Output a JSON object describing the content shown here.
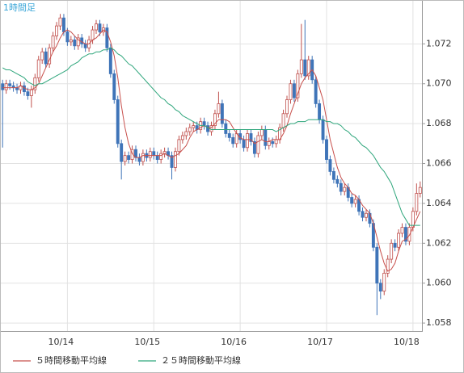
{
  "chart_data": {
    "type": "candlestick",
    "title": "1時間足",
    "categories": [
      null,
      null,
      null,
      null,
      null,
      null,
      null,
      null,
      null,
      null,
      null,
      null,
      null,
      null,
      null,
      null,
      null,
      null,
      "10/14",
      null,
      null,
      null,
      null,
      null,
      null,
      null,
      null,
      null,
      null,
      null,
      null,
      null,
      null,
      null,
      null,
      null,
      null,
      null,
      null,
      null,
      null,
      null,
      "10/15",
      null,
      null,
      null,
      null,
      null,
      null,
      null,
      null,
      null,
      null,
      null,
      null,
      null,
      null,
      null,
      null,
      null,
      null,
      null,
      null,
      null,
      null,
      null,
      "10/16",
      null,
      null,
      null,
      null,
      null,
      null,
      null,
      null,
      null,
      null,
      null,
      null,
      null,
      null,
      null,
      null,
      null,
      null,
      null,
      null,
      null,
      null,
      null,
      "10/17",
      null,
      null,
      null,
      null,
      null,
      null,
      null,
      null,
      null,
      null,
      null,
      null,
      null,
      null,
      null,
      null,
      null,
      null,
      null,
      null,
      null,
      null,
      null,
      "10/18",
      null,
      null
    ],
    "open": [
      1.07,
      1.0697,
      1.07,
      1.0699,
      1.0698,
      1.0697,
      1.0699,
      1.0696,
      1.0694,
      1.0697,
      1.0703,
      1.0712,
      1.0716,
      1.071,
      1.0718,
      1.0724,
      1.0729,
      1.0733,
      1.0726,
      1.0721,
      1.0722,
      1.0719,
      1.0723,
      1.072,
      1.0718,
      1.0722,
      1.0727,
      1.073,
      1.0726,
      1.0728,
      1.0718,
      1.0705,
      1.0692,
      1.067,
      1.0661,
      1.0664,
      1.0662,
      1.0667,
      1.0663,
      1.0661,
      1.0665,
      1.0663,
      1.0666,
      1.0664,
      1.0662,
      1.0665,
      1.0666,
      1.0664,
      1.0658,
      1.0666,
      1.0672,
      1.0674,
      1.0676,
      1.0678,
      1.0679,
      1.0677,
      1.0681,
      1.0679,
      1.0676,
      1.0679,
      1.0685,
      1.069,
      1.068,
      1.0675,
      1.0673,
      1.067,
      1.0675,
      1.0672,
      1.0668,
      1.0675,
      1.0671,
      1.0665,
      1.0674,
      1.0677,
      1.0669,
      1.0671,
      1.067,
      1.0672,
      1.0678,
      1.0685,
      1.0692,
      1.07,
      1.0693,
      1.0705,
      1.0712,
      1.0704,
      1.0712,
      1.0702,
      1.069,
      1.0682,
      1.0672,
      1.0662,
      1.0656,
      1.0652,
      1.065,
      1.0646,
      1.0648,
      1.0643,
      1.064,
      1.0642,
      1.0636,
      1.0633,
      1.0635,
      1.063,
      1.0618,
      1.06,
      1.0596,
      1.0605,
      1.0612,
      1.062,
      1.0618,
      1.0625,
      1.0628,
      1.0621,
      1.0628,
      1.0636,
      1.0645
    ],
    "high": [
      1.0702,
      1.0702,
      1.0702,
      1.0701,
      1.07,
      1.0701,
      1.0701,
      1.0698,
      1.0699,
      1.0705,
      1.0714,
      1.0718,
      1.0718,
      1.072,
      1.0726,
      1.0731,
      1.0735,
      1.0735,
      1.0728,
      1.0724,
      1.0724,
      1.0725,
      1.0725,
      1.0722,
      1.0724,
      1.0729,
      1.0732,
      1.0732,
      1.073,
      1.073,
      1.072,
      1.0707,
      1.0694,
      1.0672,
      1.0666,
      1.0666,
      1.0669,
      1.0669,
      1.0665,
      1.0667,
      1.0667,
      1.0668,
      1.0668,
      1.0666,
      1.0667,
      1.0668,
      1.0668,
      1.0666,
      1.0668,
      1.0674,
      1.0676,
      1.0678,
      1.068,
      1.0681,
      1.0681,
      1.0683,
      1.0683,
      1.0681,
      1.0681,
      1.0687,
      1.0696,
      1.0692,
      1.0682,
      1.0677,
      1.0675,
      1.0677,
      1.0677,
      1.0674,
      1.0677,
      1.0677,
      1.0673,
      1.0676,
      1.0679,
      1.0679,
      1.0673,
      1.0673,
      1.0674,
      1.068,
      1.0687,
      1.0694,
      1.0702,
      1.0702,
      1.0707,
      1.073,
      1.0732,
      1.0714,
      1.0714,
      1.0704,
      1.0692,
      1.0684,
      1.0674,
      1.0664,
      1.0658,
      1.0654,
      1.0652,
      1.065,
      1.065,
      1.0645,
      1.0644,
      1.0644,
      1.0638,
      1.0637,
      1.0637,
      1.0632,
      1.062,
      1.0602,
      1.0607,
      1.0614,
      1.0622,
      1.0622,
      1.0627,
      1.063,
      1.063,
      1.063,
      1.0638,
      1.065,
      1.0651
    ],
    "low": [
      1.0668,
      1.0695,
      1.0697,
      1.0696,
      1.0695,
      1.0695,
      1.0694,
      1.0692,
      1.0688,
      1.0695,
      1.0701,
      1.071,
      1.0708,
      1.0708,
      1.0716,
      1.0722,
      1.0727,
      1.0724,
      1.0719,
      1.0719,
      1.0717,
      1.0717,
      1.0718,
      1.0716,
      1.0716,
      1.072,
      1.0725,
      1.0724,
      1.0724,
      1.0716,
      1.0703,
      1.069,
      1.0668,
      1.0652,
      1.0659,
      1.066,
      1.066,
      1.0661,
      1.0659,
      1.0659,
      1.0661,
      1.0661,
      1.0662,
      1.066,
      1.066,
      1.0663,
      1.0662,
      1.0652,
      1.0656,
      1.0664,
      1.067,
      1.0672,
      1.0674,
      1.0676,
      1.0675,
      1.0675,
      1.0677,
      1.0674,
      1.0674,
      1.0677,
      1.0683,
      1.0678,
      1.0673,
      1.0671,
      1.0668,
      1.0668,
      1.067,
      1.0666,
      1.0666,
      1.0669,
      1.0663,
      1.0663,
      1.0672,
      1.0667,
      1.0667,
      1.0668,
      1.0668,
      1.067,
      1.0676,
      1.0683,
      1.069,
      1.0691,
      1.0691,
      1.0703,
      1.0702,
      1.0702,
      1.07,
      1.0688,
      1.068,
      1.067,
      1.066,
      1.0654,
      1.065,
      1.0648,
      1.0644,
      1.0644,
      1.0641,
      1.0638,
      1.0638,
      1.0634,
      1.0631,
      1.0631,
      1.0628,
      1.0616,
      1.0584,
      1.0592,
      1.0594,
      1.0603,
      1.061,
      1.0616,
      1.0616,
      1.0623,
      1.0619,
      1.0619,
      1.0626,
      1.0634,
      1.0643
    ],
    "close": [
      1.0697,
      1.07,
      1.0699,
      1.0698,
      1.0697,
      1.0699,
      1.0696,
      1.0694,
      1.0697,
      1.0703,
      1.0712,
      1.0716,
      1.071,
      1.0718,
      1.0724,
      1.0729,
      1.0733,
      1.0726,
      1.0721,
      1.0722,
      1.0719,
      1.0723,
      1.072,
      1.0718,
      1.0722,
      1.0727,
      1.073,
      1.0726,
      1.0728,
      1.0718,
      1.0705,
      1.0692,
      1.067,
      1.0661,
      1.0664,
      1.0662,
      1.0667,
      1.0663,
      1.0661,
      1.0665,
      1.0663,
      1.0666,
      1.0664,
      1.0662,
      1.0665,
      1.0666,
      1.0664,
      1.0658,
      1.0666,
      1.0672,
      1.0674,
      1.0676,
      1.0678,
      1.0679,
      1.0677,
      1.0681,
      1.0679,
      1.0676,
      1.0679,
      1.0685,
      1.069,
      1.068,
      1.0675,
      1.0673,
      1.067,
      1.0675,
      1.0672,
      1.0668,
      1.0675,
      1.0671,
      1.0665,
      1.0674,
      1.0677,
      1.0669,
      1.0671,
      1.067,
      1.0672,
      1.0678,
      1.0685,
      1.0692,
      1.07,
      1.0693,
      1.0705,
      1.0712,
      1.0704,
      1.0712,
      1.0702,
      1.069,
      1.0682,
      1.0672,
      1.0662,
      1.0656,
      1.0652,
      1.065,
      1.0646,
      1.0648,
      1.0643,
      1.064,
      1.0642,
      1.0636,
      1.0633,
      1.0635,
      1.063,
      1.0618,
      1.06,
      1.0596,
      1.0605,
      1.0612,
      1.062,
      1.0618,
      1.0625,
      1.0628,
      1.0621,
      1.0628,
      1.0636,
      1.0645,
      1.0648
    ],
    "up_color": "#c0504d",
    "down_color": "#3f74b8",
    "series": [
      {
        "name": "５時間移動平均線",
        "color": "#c8504c",
        "values": [
          1.0698,
          1.0698,
          1.0698,
          1.0698,
          1.0698,
          1.0699,
          1.0698,
          1.0697,
          1.0697,
          1.0698,
          1.07,
          1.0704,
          1.0708,
          1.0712,
          1.0716,
          1.0719,
          1.0723,
          1.0726,
          1.0727,
          1.0726,
          1.0724,
          1.0722,
          1.0721,
          1.072,
          1.072,
          1.0722,
          1.0723,
          1.0725,
          1.0727,
          1.0726,
          1.0721,
          1.0714,
          1.0703,
          1.0689,
          1.0678,
          1.067,
          1.0665,
          1.0663,
          1.0663,
          1.0664,
          1.0664,
          1.0664,
          1.0664,
          1.0664,
          1.0664,
          1.0665,
          1.0664,
          1.0663,
          1.0664,
          1.0665,
          1.0667,
          1.0669,
          1.0673,
          1.0676,
          1.0677,
          1.0678,
          1.0679,
          1.0678,
          1.0678,
          1.068,
          1.0682,
          1.0682,
          1.0682,
          1.0681,
          1.0678,
          1.0675,
          1.0673,
          1.0672,
          1.0672,
          1.0672,
          1.067,
          1.0671,
          1.0672,
          1.0671,
          1.0671,
          1.0672,
          1.0672,
          1.0672,
          1.0675,
          1.0679,
          1.0685,
          1.069,
          1.0695,
          1.07,
          1.0703,
          1.0705,
          1.0707,
          1.0704,
          1.0698,
          1.0692,
          1.0682,
          1.0672,
          1.0665,
          1.0658,
          1.0653,
          1.065,
          1.0648,
          1.0645,
          1.0644,
          1.0642,
          1.0639,
          1.0637,
          1.0635,
          1.063,
          1.0623,
          1.0616,
          1.061,
          1.0606,
          1.0607,
          1.061,
          1.0616,
          1.0621,
          1.0622,
          1.0624,
          1.0628,
          1.0632,
          1.0636
        ]
      },
      {
        "name": "２５時間移動平均線",
        "color": "#2fa67c",
        "values": [
          1.0708,
          1.0707,
          1.0707,
          1.0706,
          1.0705,
          1.0704,
          1.0703,
          1.0701,
          1.07,
          1.0699,
          1.07,
          1.07,
          1.0701,
          1.0702,
          1.0703,
          1.0704,
          1.0705,
          1.0706,
          1.0707,
          1.0709,
          1.071,
          1.0711,
          1.0713,
          1.0714,
          1.0715,
          1.0715,
          1.0716,
          1.0716,
          1.0717,
          1.0717,
          1.0718,
          1.0717,
          1.0715,
          1.0714,
          1.0712,
          1.071,
          1.0709,
          1.0707,
          1.0705,
          1.0703,
          1.0701,
          1.0699,
          1.0697,
          1.0695,
          1.0693,
          1.0692,
          1.069,
          1.0689,
          1.0687,
          1.0686,
          1.0684,
          1.0683,
          1.0682,
          1.0681,
          1.068,
          1.0679,
          1.0679,
          1.0678,
          1.0677,
          1.0677,
          1.0677,
          1.0677,
          1.0677,
          1.0677,
          1.0677,
          1.0677,
          1.0677,
          1.0677,
          1.0677,
          1.0677,
          1.0677,
          1.0677,
          1.0677,
          1.0677,
          1.0677,
          1.0677,
          1.0676,
          1.0677,
          1.0678,
          1.0679,
          1.068,
          1.068,
          1.0681,
          1.0681,
          1.0681,
          1.0682,
          1.0682,
          1.0682,
          1.0682,
          1.0682,
          1.0681,
          1.0681,
          1.068,
          1.068,
          1.0679,
          1.0677,
          1.0676,
          1.0674,
          1.0673,
          1.0671,
          1.0669,
          1.0668,
          1.0666,
          1.0664,
          1.0661,
          1.0658,
          1.0656,
          1.0653,
          1.065,
          1.0645,
          1.064,
          1.0635,
          1.0632,
          1.0629,
          1.0629,
          1.0629,
          1.0629
        ]
      }
    ],
    "ylim": [
      1.0576,
      1.0742
    ],
    "yticks": [
      1.058,
      {
        "value": 1.06,
        "label": "1.060"
      },
      1.062,
      1.064,
      1.066,
      1.068,
      {
        "value": 1.07,
        "label": "1.070"
      },
      1.072
    ],
    "grid": true
  }
}
